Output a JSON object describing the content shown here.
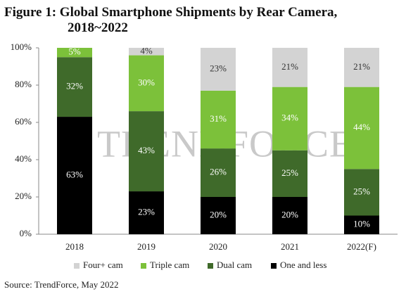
{
  "chart_data": {
    "type": "stacked_bar",
    "title": [
      "Figure 1: Global Smartphone Shipments by Rear Camera,",
      "2018~2022"
    ],
    "watermark": "TRENDFORCE",
    "source": "Source: TrendForce, May 2022",
    "categories": [
      "2018",
      "2019",
      "2020",
      "2021",
      "2022(F)"
    ],
    "series": [
      {
        "name": "Four+ cam",
        "color": "#d3d3d3",
        "values": [
          0,
          4,
          23,
          21,
          21
        ],
        "value_labels": [
          null,
          "4%",
          "23%",
          "21%",
          "21%"
        ]
      },
      {
        "name": "Triple cam",
        "color": "#7cc13a",
        "values": [
          5,
          30,
          31,
          34,
          44
        ],
        "value_labels": [
          "5%",
          "30%",
          "31%",
          "34%",
          "44%"
        ]
      },
      {
        "name": "Dual cam",
        "color": "#3f6a2a",
        "values": [
          32,
          43,
          26,
          25,
          25
        ],
        "value_labels": [
          "32%",
          "43%",
          "26%",
          "25%",
          "25%"
        ]
      },
      {
        "name": "One and less",
        "color": "#000000",
        "values": [
          63,
          23,
          20,
          20,
          10
        ],
        "value_labels": [
          "63%",
          "23%",
          "20%",
          "20%",
          "10%"
        ]
      }
    ],
    "ylim": [
      0,
      100
    ],
    "yticks": [
      {
        "value": 0,
        "label": "0%"
      },
      {
        "value": 20,
        "label": "20%"
      },
      {
        "value": 40,
        "label": "40%"
      },
      {
        "value": 60,
        "label": "60%"
      },
      {
        "value": 80,
        "label": "80%"
      },
      {
        "value": 100,
        "label": "100%"
      }
    ],
    "grid": false,
    "legend": "bottom"
  }
}
